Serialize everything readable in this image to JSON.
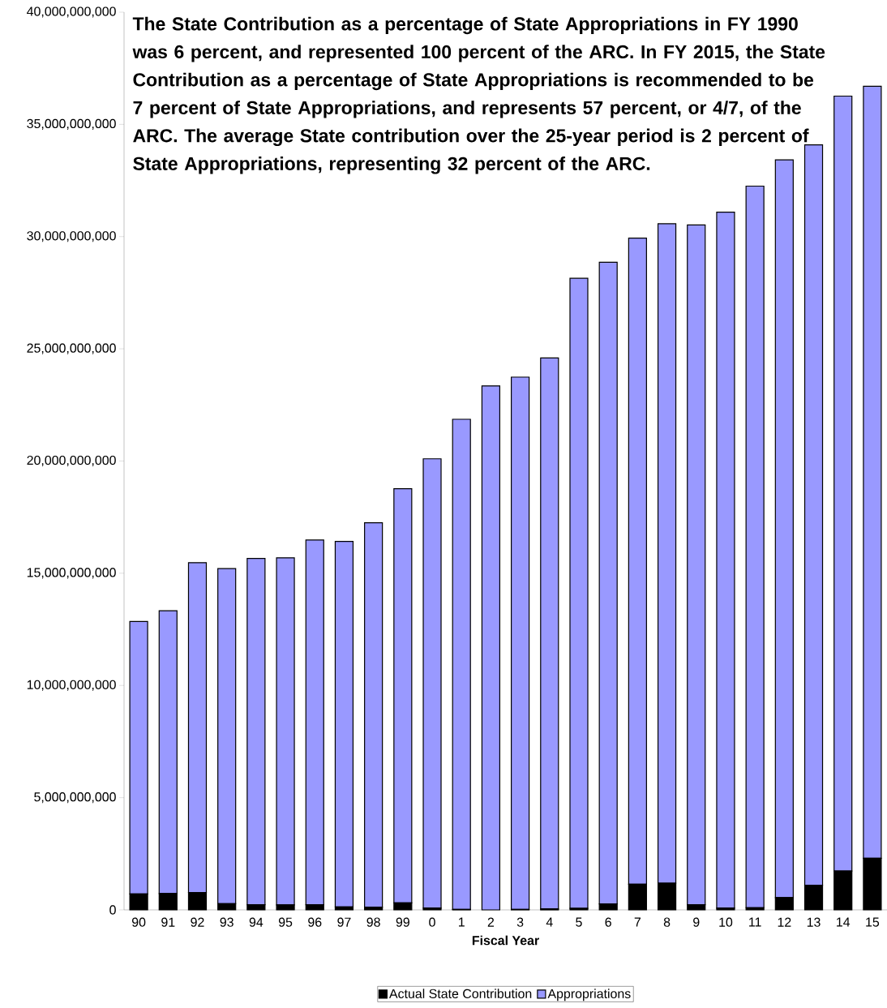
{
  "chart_data": {
    "type": "bar",
    "stacked": true,
    "xlabel": "Fiscal Year",
    "categories": [
      "90",
      "91",
      "92",
      "93",
      "94",
      "95",
      "96",
      "97",
      "98",
      "99",
      "0",
      "1",
      "2",
      "3",
      "4",
      "5",
      "6",
      "7",
      "8",
      "9",
      "10",
      "11",
      "12",
      "13",
      "14",
      "15"
    ],
    "series": [
      {
        "name": "Actual State Contribution",
        "color": "#000000",
        "values": [
          710000000,
          730000000,
          770000000,
          280000000,
          230000000,
          220000000,
          230000000,
          130000000,
          120000000,
          310000000,
          80000000,
          20000000,
          0,
          20000000,
          40000000,
          70000000,
          270000000,
          1140000000,
          1190000000,
          230000000,
          80000000,
          100000000,
          550000000,
          1100000000,
          1730000000,
          2300000000
        ]
      },
      {
        "name": "Appropriations",
        "color": "#9999ff",
        "values": [
          12140000000,
          12600000000,
          14700000000,
          14930000000,
          15430000000,
          15470000000,
          16250000000,
          16290000000,
          17130000000,
          18460000000,
          20020000000,
          21840000000,
          23350000000,
          23720000000,
          24550000000,
          28070000000,
          28590000000,
          28790000000,
          29380000000,
          30290000000,
          31010000000,
          32150000000,
          32870000000,
          32990000000,
          34530000000,
          34400000000
        ]
      }
    ],
    "ylim": [
      0,
      40000000000
    ],
    "yticks": [
      {
        "value": 0,
        "label": "0"
      },
      {
        "value": 5000000000,
        "label": "5,000,000,000"
      },
      {
        "value": 10000000000,
        "label": "10,000,000,000"
      },
      {
        "value": 15000000000,
        "label": "15,000,000,000"
      },
      {
        "value": 20000000000,
        "label": "20,000,000,000"
      },
      {
        "value": 25000000000,
        "label": "25,000,000,000"
      },
      {
        "value": 30000000000,
        "label": "30,000,000,000"
      },
      {
        "value": 35000000000,
        "label": "35,000,000,000"
      },
      {
        "value": 40000000000,
        "label": "40,000,000,000"
      }
    ],
    "annotations": [
      "The State Contribution as a percentage of State Appropriations in FY 1990 was 6 percent, and represented 100 percent of the ARC. In FY 2015, the State Contribution as a percentage of State Appropriations is recommended to be 7 percent of State Appropriations, and represents 57 percent, or 4/7, of the ARC. The average State contribution over the 25-year period is 2 percent of State Appropriations, representing 32 percent of the ARC."
    ],
    "legend": "bottom",
    "grid": false
  }
}
